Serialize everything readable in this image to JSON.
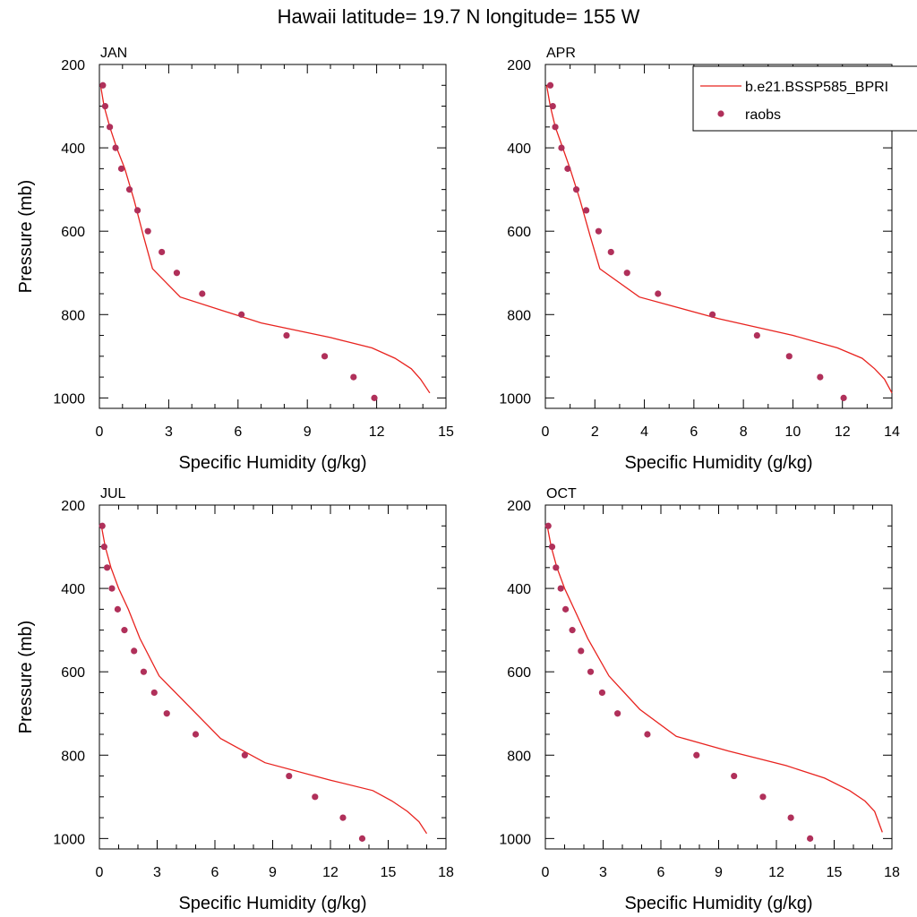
{
  "title": "Hawaii  latitude= 19.7 N longitude= 155 W",
  "colors": {
    "model_line": "#e8231f",
    "obs_marker": "#b0305a",
    "axis": "#000000"
  },
  "legend": {
    "placement": "top-right",
    "entries": [
      {
        "label": "b.e21.BSSP585_BPRI",
        "kind": "line"
      },
      {
        "label": "raobs",
        "kind": "marker"
      }
    ]
  },
  "chart_data": [
    {
      "type": "line",
      "panel": "JAN",
      "xlabel": "Specific Humidity (g/kg)",
      "ylabel": "Pressure (mb)",
      "xlim": [
        0,
        15
      ],
      "ylim": [
        200,
        1025
      ],
      "y_reversed": true,
      "grid": false,
      "xticks": [
        0,
        3,
        6,
        9,
        12,
        15
      ],
      "xtick_labels": [
        "0",
        "3",
        "6",
        "9",
        "12",
        "15"
      ],
      "yticks": [
        200,
        400,
        600,
        800,
        1000
      ],
      "ytick_labels": [
        "200",
        "400",
        "600",
        "800",
        "1000"
      ],
      "series": [
        {
          "name": "b.e21.BSSP585_BPRI",
          "style": "line",
          "x": [
            0.05,
            0.2,
            0.45,
            0.75,
            1.1,
            1.5,
            1.9,
            2.3,
            3.5,
            7.0,
            10.0,
            11.8,
            12.8,
            13.5,
            13.9,
            14.3
          ],
          "y": [
            250,
            300,
            350,
            400,
            450,
            525,
            610,
            690,
            758,
            820,
            855,
            880,
            905,
            930,
            955,
            988
          ]
        },
        {
          "name": "raobs",
          "style": "marker",
          "x": [
            0.15,
            0.25,
            0.45,
            0.7,
            0.95,
            1.3,
            1.65,
            2.1,
            2.7,
            3.35,
            4.45,
            6.15,
            8.1,
            9.75,
            11.0,
            11.9
          ],
          "y": [
            250,
            300,
            350,
            400,
            450,
            500,
            550,
            600,
            650,
            700,
            750,
            800,
            850,
            900,
            950,
            1000
          ]
        }
      ]
    },
    {
      "type": "line",
      "panel": "APR",
      "xlabel": "Specific Humidity (g/kg)",
      "ylabel": "",
      "xlim": [
        0,
        14
      ],
      "ylim": [
        200,
        1025
      ],
      "y_reversed": true,
      "grid": false,
      "xticks": [
        0,
        2,
        4,
        6,
        8,
        10,
        12,
        14
      ],
      "xtick_labels": [
        "0",
        "2",
        "4",
        "6",
        "8",
        "10",
        "12",
        "14"
      ],
      "yticks": [
        200,
        400,
        600,
        800,
        1000
      ],
      "ytick_labels": [
        "200",
        "400",
        "600",
        "800",
        "1000"
      ],
      "series": [
        {
          "name": "b.e21.BSSP585_BPRI",
          "style": "line",
          "x": [
            0.05,
            0.2,
            0.4,
            0.7,
            1.0,
            1.4,
            1.8,
            2.2,
            3.8,
            7.0,
            10.0,
            11.8,
            12.8,
            13.3,
            13.7,
            14.0
          ],
          "y": [
            250,
            300,
            350,
            400,
            450,
            525,
            610,
            690,
            758,
            810,
            850,
            880,
            905,
            930,
            955,
            988
          ]
        },
        {
          "name": "raobs",
          "style": "marker",
          "x": [
            0.2,
            0.3,
            0.4,
            0.65,
            0.9,
            1.25,
            1.65,
            2.15,
            2.65,
            3.3,
            4.55,
            6.75,
            8.55,
            9.85,
            11.1,
            12.05
          ],
          "y": [
            250,
            300,
            350,
            400,
            450,
            500,
            550,
            600,
            650,
            700,
            750,
            800,
            850,
            900,
            950,
            1000
          ]
        }
      ]
    },
    {
      "type": "line",
      "panel": "JUL",
      "xlabel": "Specific Humidity (g/kg)",
      "ylabel": "Pressure (mb)",
      "xlim": [
        0,
        18
      ],
      "ylim": [
        200,
        1025
      ],
      "y_reversed": true,
      "grid": false,
      "xticks": [
        0,
        3,
        6,
        9,
        12,
        15,
        18
      ],
      "xtick_labels": [
        "0",
        "3",
        "6",
        "9",
        "12",
        "15",
        "18"
      ],
      "yticks": [
        200,
        400,
        600,
        800,
        1000
      ],
      "ytick_labels": [
        "200",
        "400",
        "600",
        "800",
        "1000"
      ],
      "series": [
        {
          "name": "b.e21.BSSP585_BPRI",
          "style": "line",
          "x": [
            0.1,
            0.3,
            0.6,
            1.0,
            1.5,
            2.1,
            3.1,
            6.3,
            8.6,
            12.0,
            14.2,
            15.2,
            16.0,
            16.6,
            17.0
          ],
          "y": [
            250,
            300,
            350,
            400,
            450,
            520,
            610,
            760,
            818,
            860,
            885,
            910,
            935,
            960,
            988
          ]
        },
        {
          "name": "raobs",
          "style": "marker",
          "x": [
            0.15,
            0.25,
            0.4,
            0.65,
            0.95,
            1.3,
            1.8,
            2.3,
            2.85,
            3.5,
            5.0,
            7.55,
            9.85,
            11.2,
            12.65,
            13.65
          ],
          "y": [
            250,
            300,
            350,
            400,
            450,
            500,
            550,
            600,
            650,
            700,
            750,
            800,
            850,
            900,
            950,
            1000
          ]
        }
      ]
    },
    {
      "type": "line",
      "panel": "OCT",
      "xlabel": "Specific Humidity (g/kg)",
      "ylabel": "",
      "xlim": [
        0,
        18
      ],
      "ylim": [
        200,
        1025
      ],
      "y_reversed": true,
      "grid": false,
      "xticks": [
        0,
        3,
        6,
        9,
        12,
        15,
        18
      ],
      "xtick_labels": [
        "0",
        "3",
        "6",
        "9",
        "12",
        "15",
        "18"
      ],
      "yticks": [
        200,
        400,
        600,
        800,
        1000
      ],
      "ytick_labels": [
        "200",
        "400",
        "600",
        "800",
        "1000"
      ],
      "series": [
        {
          "name": "b.e21.BSSP585_BPRI",
          "style": "line",
          "x": [
            0.1,
            0.3,
            0.6,
            1.0,
            1.5,
            2.2,
            3.3,
            4.9,
            6.8,
            9.5,
            12.5,
            14.5,
            15.8,
            16.6,
            17.1,
            17.5
          ],
          "y": [
            250,
            300,
            350,
            400,
            450,
            520,
            610,
            690,
            755,
            790,
            825,
            855,
            885,
            910,
            935,
            985
          ]
        },
        {
          "name": "raobs",
          "style": "marker",
          "x": [
            0.15,
            0.35,
            0.55,
            0.8,
            1.05,
            1.4,
            1.85,
            2.35,
            2.95,
            3.75,
            5.3,
            7.85,
            9.8,
            11.3,
            12.75,
            13.75
          ],
          "y": [
            250,
            300,
            350,
            400,
            450,
            500,
            550,
            600,
            650,
            700,
            750,
            800,
            850,
            900,
            950,
            1000
          ]
        }
      ]
    }
  ]
}
